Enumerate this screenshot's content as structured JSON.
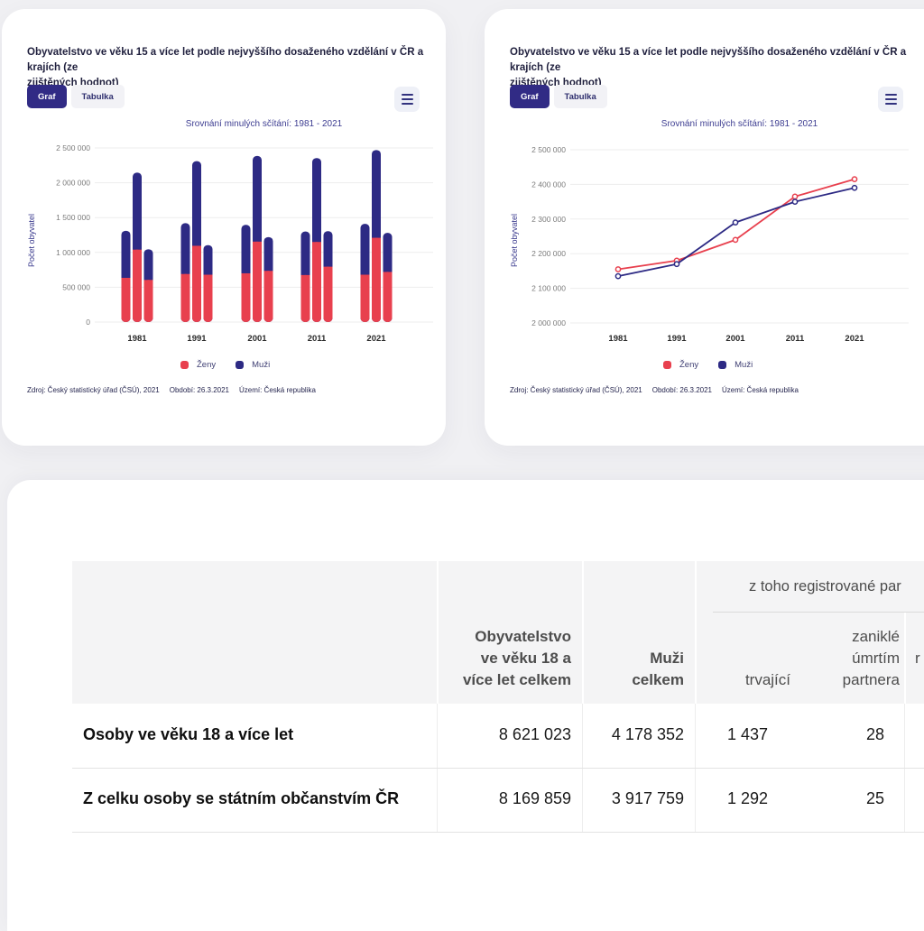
{
  "colors": {
    "accent": "#312b85",
    "zeny_red": "#e8404e",
    "muzi_blue": "#2d2a84",
    "gridline": "#ededed",
    "axis_text": "#7b7b7b",
    "category_text": "#2a2a2a"
  },
  "cards": [
    {
      "title_lines": [
        "Obyvatelstvo ve věku 15 a více let podle nejvyššího dosaženého vzdělání v ČR a krajích (ze",
        "zjištěných hodnot)"
      ],
      "tab_graf": "Graf",
      "tab_tabulka": "Tabulka",
      "chart_subtitle": "Srovnání minulých sčítání: 1981 - 2021",
      "y_axis_title": "Počet obyvatel",
      "legend": [
        {
          "label": "Ženy",
          "color": "#e8404e"
        },
        {
          "label": "Muži",
          "color": "#2d2a84"
        }
      ],
      "source": "Zdroj: Český statistický úřad (ČSÚ), 2021",
      "period": "Období: 26.3.2021",
      "territory": "Území: Česká republika"
    },
    {
      "title_lines": [
        "Obyvatelstvo ve věku 15 a více let podle nejvyššího dosaženého vzdělání v ČR a krajích (ze",
        "zjištěných hodnot)"
      ],
      "tab_graf": "Graf",
      "tab_tabulka": "Tabulka",
      "chart_subtitle": "Srovnání minulých sčítání: 1981 - 2021",
      "y_axis_title": "Počet obyvatel",
      "legend": [
        {
          "label": "Ženy",
          "color": "#e8404e"
        },
        {
          "label": "Muži",
          "color": "#2d2a84"
        }
      ],
      "source": "Zdroj: Český statistický úřad (ČSÚ), 2021",
      "period": "Období: 26.3.2021",
      "territory": "Území: Česká republika"
    }
  ],
  "chart_data": [
    {
      "type": "bar",
      "stacked": true,
      "title": "Srovnání minulých sčítání: 1981 - 2021",
      "ylabel": "Počet obyvatel",
      "categories": [
        "1981",
        "1991",
        "2001",
        "2011",
        "2021"
      ],
      "bars_per_category": 3,
      "ylim": [
        0,
        2500000
      ],
      "yticks": {
        "values": [
          0,
          500000,
          1000000,
          1500000,
          2000000,
          2500000
        ],
        "labels": [
          "0",
          "500 000",
          "1 000 000",
          "1 500 000",
          "2 000 000",
          "2 500 000"
        ]
      },
      "grid": true,
      "legend_position": "bottom",
      "series": [
        {
          "name": "Ženy",
          "color": "#e8404e",
          "values": [
            [
              635000,
              1040000,
              605000
            ],
            [
              690000,
              1095000,
              680000
            ],
            [
              700000,
              1155000,
              735000
            ],
            [
              675000,
              1150000,
              795000
            ],
            [
              680000,
              1210000,
              720000
            ]
          ]
        },
        {
          "name": "Muži",
          "color": "#2d2a84",
          "values": [
            [
              675000,
              1105000,
              440000
            ],
            [
              730000,
              1215000,
              425000
            ],
            [
              695000,
              1230000,
              485000
            ],
            [
              625000,
              1205000,
              510000
            ],
            [
              730000,
              1260000,
              560000
            ]
          ]
        }
      ]
    },
    {
      "type": "line",
      "title": "Srovnání minulých sčítání: 1981 - 2021",
      "ylabel": "Počet obyvatel",
      "categories": [
        "1981",
        "1991",
        "2001",
        "2011",
        "2021"
      ],
      "ylim": [
        2000000,
        2500000
      ],
      "yticks": {
        "values": [
          2000000,
          2100000,
          2200000,
          2300000,
          2400000,
          2500000
        ],
        "labels": [
          "2 000 000",
          "2 100 000",
          "2 200 000",
          "2 300 000",
          "2 400 000",
          "2 500 000"
        ]
      },
      "grid": true,
      "legend_position": "bottom",
      "series": [
        {
          "name": "Ženy",
          "color": "#e8404e",
          "values": [
            2155000,
            2180000,
            2240000,
            2365000,
            2415000
          ]
        },
        {
          "name": "Muži",
          "color": "#2d2a84",
          "values": [
            2135000,
            2170000,
            2290000,
            2350000,
            2390000
          ]
        }
      ]
    }
  ],
  "table": {
    "header": {
      "col_population": [
        "Obyvatelstvo",
        "ve věku 18 a",
        "více let celkem"
      ],
      "col_men": [
        "Muži",
        "celkem"
      ],
      "group_label": "z toho registrované par",
      "sub_trvajici": "trvající",
      "sub_zanikle": [
        "zaniklé",
        "úmrtím",
        "partnera"
      ],
      "partial_next_fragment": "r"
    },
    "rows": [
      {
        "label": "Osoby ve věku 18 a více let",
        "population": "8 621 023",
        "men": "4 178 352",
        "trvajici": "1 437",
        "zanikle_umrtim": "28"
      },
      {
        "label": "Z celku osoby se státním občanstvím ČR",
        "population": "8 169 859",
        "men": "3 917 759",
        "trvajici": "1 292",
        "zanikle_umrtim": "25"
      }
    ]
  }
}
